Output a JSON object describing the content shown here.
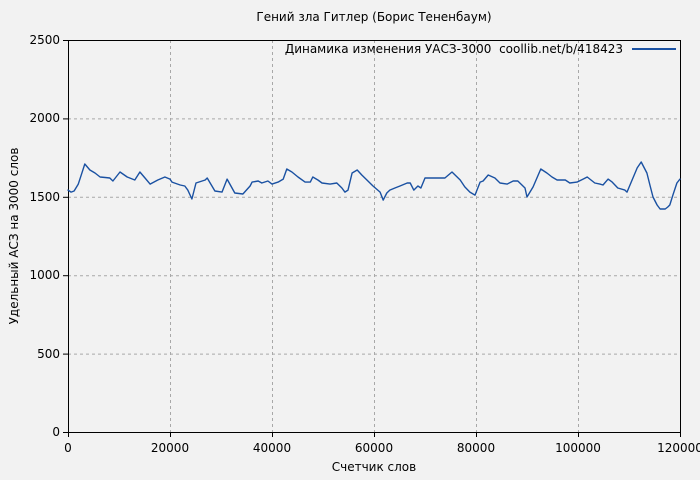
{
  "page": {
    "background": "#f2f2f2"
  },
  "chart_data": {
    "type": "line",
    "title": "Гений зла Гитлер (Борис Тененбаум)",
    "xlabel": "Счетчик слов",
    "ylabel": "Удельный АСЗ на 3000 слов",
    "xlim": [
      0,
      120000
    ],
    "ylim": [
      0,
      2500
    ],
    "xticks": [
      0,
      20000,
      40000,
      60000,
      80000,
      100000,
      120000
    ],
    "yticks": [
      0,
      500,
      1000,
      1500,
      2000,
      2500
    ],
    "xtick_labels": [
      "0",
      "20000",
      "40000",
      "60000",
      "80000",
      "100000",
      "120000"
    ],
    "ytick_labels": [
      "0",
      "500",
      "1000",
      "1500",
      "2000",
      "2500"
    ],
    "grid": true,
    "legend_position": "top-right",
    "colors": {
      "axis": "#000000",
      "grid": "#a8a8a8",
      "background": "#f2f2f2"
    },
    "series": [
      {
        "name": "Динамика изменения УАСЗ-3000  coollib.net/b/418423",
        "color": "#1a51a2",
        "points": [
          [
            0,
            1543
          ],
          [
            600,
            1530
          ],
          [
            1200,
            1537
          ],
          [
            2000,
            1580
          ],
          [
            2700,
            1650
          ],
          [
            3300,
            1709
          ],
          [
            4300,
            1671
          ],
          [
            5300,
            1652
          ],
          [
            6300,
            1626
          ],
          [
            7300,
            1623
          ],
          [
            8200,
            1620
          ],
          [
            8800,
            1601
          ],
          [
            10200,
            1658
          ],
          [
            11600,
            1626
          ],
          [
            13100,
            1607
          ],
          [
            14100,
            1658
          ],
          [
            15100,
            1620
          ],
          [
            16100,
            1581
          ],
          [
            17600,
            1607
          ],
          [
            19000,
            1626
          ],
          [
            20000,
            1613
          ],
          [
            20400,
            1594
          ],
          [
            22000,
            1575
          ],
          [
            22900,
            1569
          ],
          [
            23500,
            1543
          ],
          [
            24300,
            1486
          ],
          [
            25100,
            1588
          ],
          [
            26900,
            1607
          ],
          [
            27300,
            1620
          ],
          [
            28800,
            1537
          ],
          [
            30200,
            1530
          ],
          [
            31200,
            1613
          ],
          [
            32700,
            1524
          ],
          [
            34300,
            1518
          ],
          [
            35700,
            1569
          ],
          [
            36100,
            1594
          ],
          [
            37300,
            1601
          ],
          [
            38000,
            1588
          ],
          [
            39200,
            1601
          ],
          [
            40000,
            1581
          ],
          [
            41200,
            1594
          ],
          [
            42200,
            1613
          ],
          [
            42900,
            1677
          ],
          [
            43900,
            1658
          ],
          [
            45100,
            1626
          ],
          [
            46500,
            1594
          ],
          [
            47500,
            1594
          ],
          [
            48000,
            1626
          ],
          [
            49000,
            1607
          ],
          [
            49800,
            1588
          ],
          [
            51400,
            1581
          ],
          [
            52700,
            1588
          ],
          [
            53700,
            1556
          ],
          [
            54300,
            1530
          ],
          [
            54900,
            1543
          ],
          [
            55700,
            1652
          ],
          [
            56700,
            1671
          ],
          [
            57600,
            1639
          ],
          [
            58600,
            1607
          ],
          [
            59800,
            1569
          ],
          [
            61200,
            1530
          ],
          [
            61800,
            1479
          ],
          [
            62500,
            1524
          ],
          [
            63100,
            1543
          ],
          [
            64100,
            1556
          ],
          [
            65100,
            1569
          ],
          [
            66500,
            1588
          ],
          [
            67100,
            1588
          ],
          [
            67800,
            1543
          ],
          [
            68600,
            1569
          ],
          [
            69200,
            1556
          ],
          [
            70000,
            1620
          ],
          [
            72000,
            1620
          ],
          [
            73900,
            1620
          ],
          [
            75300,
            1658
          ],
          [
            76900,
            1607
          ],
          [
            77800,
            1563
          ],
          [
            78800,
            1530
          ],
          [
            79800,
            1511
          ],
          [
            80800,
            1594
          ],
          [
            81400,
            1601
          ],
          [
            82400,
            1639
          ],
          [
            83700,
            1620
          ],
          [
            84700,
            1588
          ],
          [
            86100,
            1581
          ],
          [
            87300,
            1601
          ],
          [
            88200,
            1601
          ],
          [
            89600,
            1556
          ],
          [
            90000,
            1499
          ],
          [
            91200,
            1563
          ],
          [
            92200,
            1639
          ],
          [
            92700,
            1677
          ],
          [
            93900,
            1652
          ],
          [
            94900,
            1626
          ],
          [
            95900,
            1607
          ],
          [
            97500,
            1607
          ],
          [
            98400,
            1588
          ],
          [
            99800,
            1594
          ],
          [
            101000,
            1613
          ],
          [
            101800,
            1626
          ],
          [
            103300,
            1588
          ],
          [
            104300,
            1581
          ],
          [
            104900,
            1575
          ],
          [
            105900,
            1613
          ],
          [
            106700,
            1594
          ],
          [
            107800,
            1556
          ],
          [
            109200,
            1543
          ],
          [
            109600,
            1530
          ],
          [
            110600,
            1607
          ],
          [
            111600,
            1684
          ],
          [
            112400,
            1722
          ],
          [
            113500,
            1652
          ],
          [
            114100,
            1575
          ],
          [
            114700,
            1499
          ],
          [
            115500,
            1448
          ],
          [
            116100,
            1422
          ],
          [
            117100,
            1422
          ],
          [
            117600,
            1435
          ],
          [
            118000,
            1448
          ],
          [
            118600,
            1511
          ],
          [
            119400,
            1588
          ],
          [
            120000,
            1613
          ]
        ]
      }
    ]
  }
}
